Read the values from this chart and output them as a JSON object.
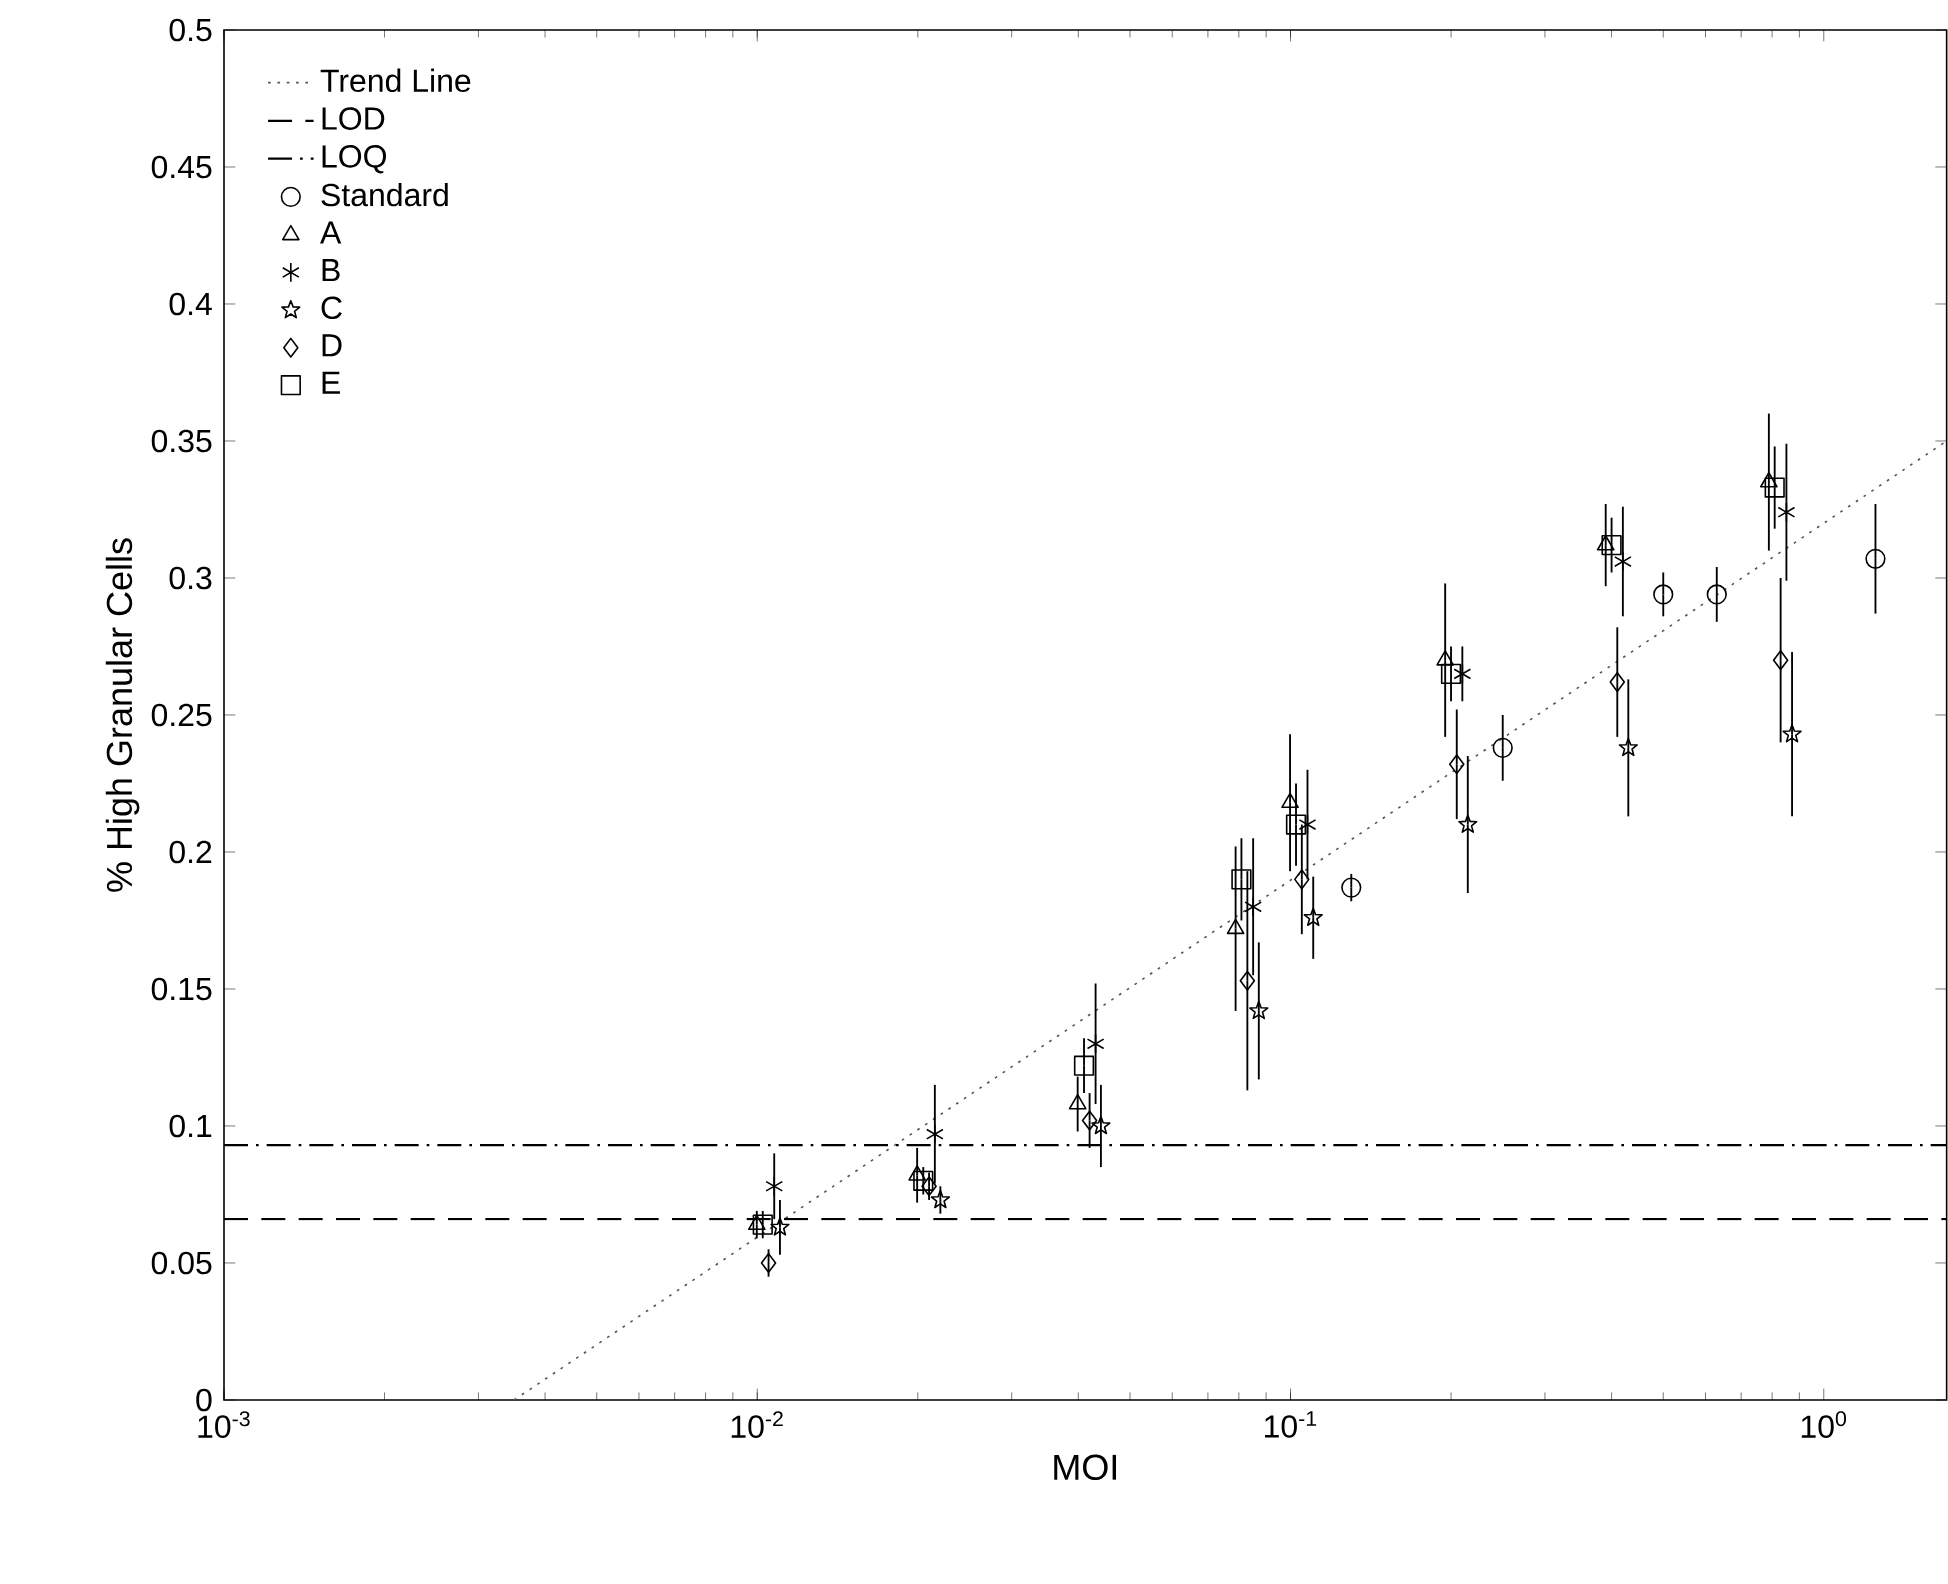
{
  "chart_data": {
    "type": "scatter",
    "xlabel": "MOI",
    "ylabel": "% High Granular Cells",
    "log": "x",
    "grid": false,
    "legend": "top left",
    "xlim": [
      0.001,
      1.7
    ],
    "ylim": [
      0,
      0.5
    ],
    "xticks": [
      {
        "value": 0.001,
        "label": "10$^{-3}$"
      },
      {
        "value": 0.01,
        "label": "10$^{-2}$"
      },
      {
        "value": 0.1,
        "label": "10$^{-1}$"
      },
      {
        "value": 1,
        "label": "10$^{0}$"
      }
    ],
    "yticks": [
      0,
      0.05,
      0.1,
      0.15,
      0.2,
      0.25,
      0.3,
      0.35,
      0.4,
      0.45,
      0.5
    ],
    "ref_lines": [
      {
        "axis": "y",
        "value": 0.066,
        "label": "LOD",
        "line_style": "dashed",
        "color": "#000000"
      },
      {
        "axis": "y",
        "value": 0.093,
        "label": "LOQ",
        "line_style": "dashdot",
        "color": "#000000"
      }
    ],
    "series": [
      {
        "name": "Trend Line",
        "type": "line",
        "line_style": "dotted",
        "marker": "none",
        "color": "#555555",
        "x": [
          0.0035,
          1.7
        ],
        "values": [
          0,
          0.35
        ]
      },
      {
        "name": "Standard",
        "color": "#000000",
        "marker": "circle",
        "x": [
          0.13,
          0.25,
          0.5,
          0.63,
          1.25
        ],
        "values": [
          0.187,
          0.238,
          0.294,
          0.294,
          0.307
        ],
        "errors": [
          0.005,
          0.012,
          0.008,
          0.01,
          0.02
        ]
      },
      {
        "name": "A",
        "color": "#000000",
        "marker": "triangle",
        "x": [
          0.00998,
          0.01995,
          0.0399,
          0.0789,
          0.0998,
          0.195,
          0.39,
          0.789
        ],
        "values": [
          0.064,
          0.082,
          0.108,
          0.172,
          0.218,
          0.27,
          0.312,
          0.335
        ],
        "errors": [
          0.005,
          0.01,
          0.01,
          0.03,
          0.025,
          0.028,
          0.015,
          0.025
        ]
      },
      {
        "name": "B",
        "color": "#000000",
        "marker": "cross",
        "x": [
          0.01076,
          0.02153,
          0.0431,
          0.0851,
          0.1076,
          0.21,
          0.42,
          0.851
        ],
        "values": [
          0.078,
          0.097,
          0.13,
          0.18,
          0.21,
          0.265,
          0.306,
          0.324
        ],
        "errors": [
          0.012,
          0.018,
          0.022,
          0.025,
          0.02,
          0.01,
          0.02,
          0.025
        ]
      },
      {
        "name": "C",
        "color": "#000000",
        "marker": "star",
        "x": [
          0.01103,
          0.02205,
          0.0441,
          0.0872,
          0.1103,
          0.215,
          0.43,
          0.872
        ],
        "values": [
          0.063,
          0.073,
          0.1,
          0.142,
          0.176,
          0.21,
          0.238,
          0.243
        ],
        "errors": [
          0.01,
          0.005,
          0.015,
          0.025,
          0.015,
          0.025,
          0.025,
          0.03
        ]
      },
      {
        "name": "D",
        "color": "#000000",
        "marker": "diamond",
        "x": [
          0.0105,
          0.021,
          0.042,
          0.083,
          0.105,
          0.205,
          0.41,
          0.83
        ],
        "values": [
          0.05,
          0.078,
          0.102,
          0.153,
          0.19,
          0.232,
          0.262,
          0.27
        ],
        "errors": [
          0.005,
          0.005,
          0.01,
          0.04,
          0.02,
          0.02,
          0.02,
          0.03
        ]
      },
      {
        "name": "E",
        "color": "#000000",
        "marker": "square",
        "x": [
          0.01024,
          0.02048,
          0.041,
          0.0809,
          0.1024,
          0.2,
          0.4,
          0.809
        ],
        "values": [
          0.064,
          0.08,
          0.122,
          0.19,
          0.21,
          0.265,
          0.312,
          0.333
        ],
        "errors": [
          0.005,
          0.005,
          0.01,
          0.015,
          0.015,
          0.01,
          0.01,
          0.015
        ]
      }
    ]
  }
}
